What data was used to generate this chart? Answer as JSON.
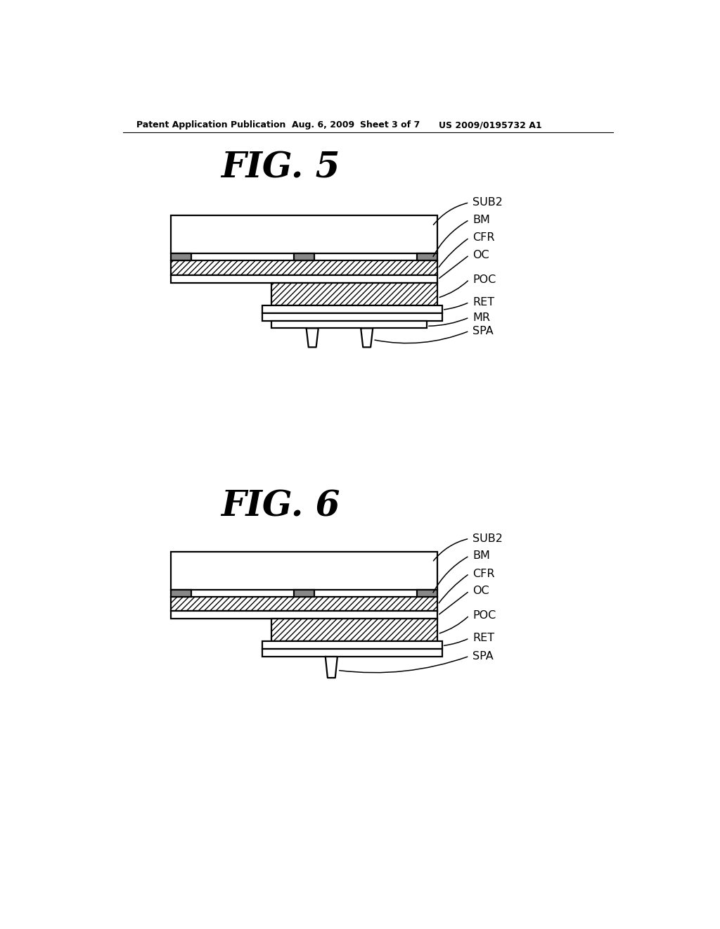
{
  "bg_color": "#ffffff",
  "header_text": "Patent Application Publication",
  "header_date": "Aug. 6, 2009",
  "header_sheet": "Sheet 3 of 7",
  "header_patent": "US 2009/0195732 A1",
  "fig5_title": "FIG. 5",
  "fig6_title": "FIG. 6",
  "line_color": "#000000",
  "label_fontsize": 11.5,
  "title_fontsize": 36
}
